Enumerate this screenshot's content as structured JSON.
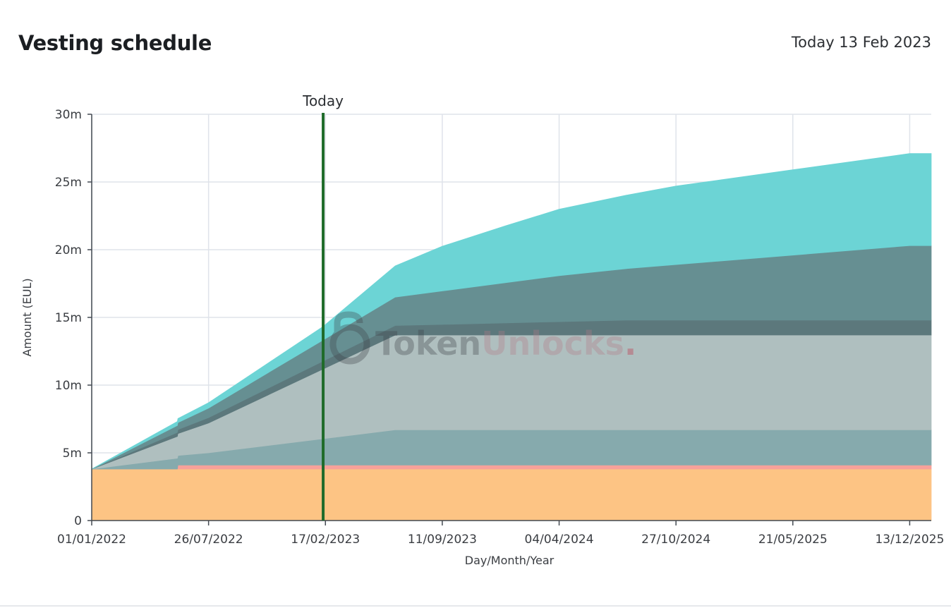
{
  "header": {
    "title": "Vesting schedule",
    "today": "Today 13 Feb 2023"
  },
  "watermark": {
    "part1": "Token",
    "part2": "Unlocks",
    "part3": "."
  },
  "colors": {
    "grid": "#dfe3ea",
    "axis": "#444a52",
    "today_line": "#1f6b2a",
    "watermark_dark": "#3b3f45",
    "watermark_light": "#b57a86"
  },
  "chart_data": {
    "type": "area",
    "stacked": true,
    "xlabel": "Day/Month/Year",
    "ylabel": "Amount (EUL)",
    "ylim": [
      0,
      30000000
    ],
    "xlim": [
      "2022-01-01",
      "2026-01-20"
    ],
    "grid": true,
    "legend": "none",
    "x_ticks": [
      {
        "date": "2022-01-01",
        "label": "01/01/2022"
      },
      {
        "date": "2022-07-26",
        "label": "26/07/2022"
      },
      {
        "date": "2023-02-17",
        "label": "17/02/2023"
      },
      {
        "date": "2023-09-11",
        "label": "11/09/2023"
      },
      {
        "date": "2024-04-04",
        "label": "04/04/2024"
      },
      {
        "date": "2024-10-27",
        "label": "27/10/2024"
      },
      {
        "date": "2025-05-21",
        "label": "21/05/2025"
      },
      {
        "date": "2025-12-13",
        "label": "13/12/2025"
      }
    ],
    "y_ticks": [
      {
        "value": 0,
        "label": "0"
      },
      {
        "value": 5000000,
        "label": "5m"
      },
      {
        "value": 10000000,
        "label": "10m"
      },
      {
        "value": 15000000,
        "label": "15m"
      },
      {
        "value": 20000000,
        "label": "20m"
      },
      {
        "value": 25000000,
        "label": "25m"
      },
      {
        "value": 30000000,
        "label": "30m"
      }
    ],
    "marker": {
      "date": "2023-02-13",
      "label": "Today"
    },
    "series": [
      {
        "color": "#fdc484",
        "points": [
          [
            "2022-01-01",
            3800000
          ],
          [
            "2026-01-20",
            3800000
          ]
        ]
      },
      {
        "color": "#f7a19a",
        "points": [
          [
            "2022-01-01",
            0
          ],
          [
            "2022-06-01",
            0
          ],
          [
            "2022-06-02",
            300000
          ],
          [
            "2026-01-20",
            300000
          ]
        ]
      },
      {
        "color": "#86aaad",
        "points": [
          [
            "2022-01-01",
            0
          ],
          [
            "2022-06-01",
            800000
          ],
          [
            "2022-06-02",
            700000
          ],
          [
            "2022-07-26",
            900000
          ],
          [
            "2023-06-20",
            2600000
          ],
          [
            "2026-01-20",
            2600000
          ]
        ]
      },
      {
        "color": "#afbfbf",
        "points": [
          [
            "2022-01-01",
            0
          ],
          [
            "2022-07-26",
            2200000
          ],
          [
            "2023-06-20",
            7000000
          ],
          [
            "2026-01-20",
            7000000
          ]
        ]
      },
      {
        "color": "#5c787c",
        "points": [
          [
            "2022-01-01",
            0
          ],
          [
            "2022-07-26",
            400000
          ],
          [
            "2023-06-20",
            700000
          ],
          [
            "2024-08-01",
            1100000
          ],
          [
            "2026-01-20",
            1100000
          ]
        ]
      },
      {
        "color": "#668f92",
        "points": [
          [
            "2022-01-01",
            0
          ],
          [
            "2022-07-26",
            700000
          ],
          [
            "2023-06-20",
            2100000
          ],
          [
            "2024-04-04",
            3400000
          ],
          [
            "2025-12-13",
            5500000
          ],
          [
            "2026-01-20",
            5500000
          ]
        ]
      },
      {
        "color": "#6cd4d5",
        "points": [
          [
            "2022-01-01",
            0
          ],
          [
            "2022-07-26",
            400000
          ],
          [
            "2023-02-13",
            1000000
          ],
          [
            "2023-06-20",
            2300000
          ],
          [
            "2023-09-11",
            3300000
          ],
          [
            "2024-01-01",
            4200000
          ],
          [
            "2024-04-04",
            4900000
          ],
          [
            "2024-10-27",
            5800000
          ],
          [
            "2025-05-21",
            6300000
          ],
          [
            "2025-12-13",
            6800000
          ],
          [
            "2026-01-20",
            6800000
          ]
        ]
      }
    ]
  }
}
